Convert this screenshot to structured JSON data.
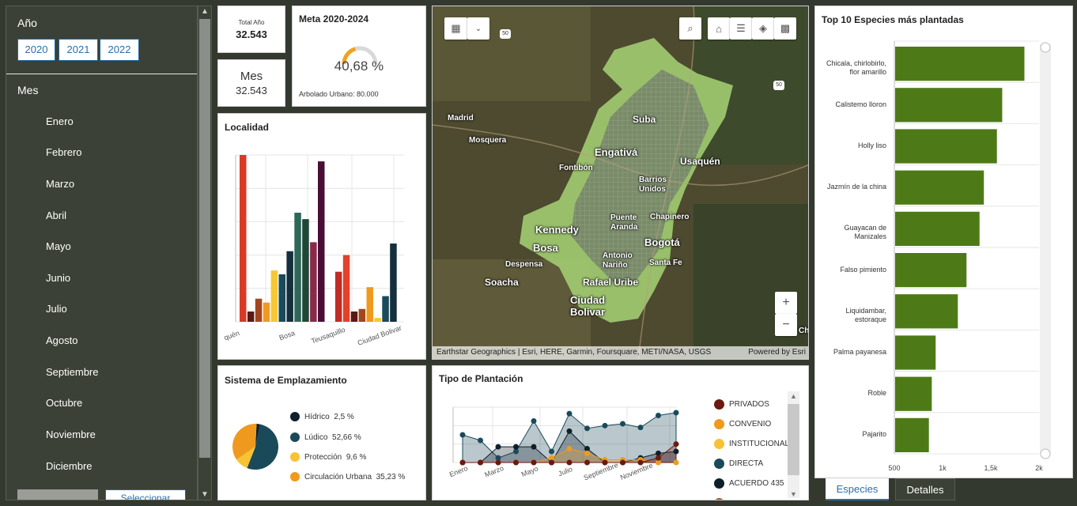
{
  "filters": {
    "year_title": "Año",
    "years": [
      "2020",
      "2021",
      "2022"
    ],
    "month_title": "Mes",
    "months": [
      "Enero",
      "Febrero",
      "Marzo",
      "Abril",
      "Mayo",
      "Junio",
      "Julio",
      "Agosto",
      "Septiembre",
      "Octubre",
      "Noviembre",
      "Diciembre"
    ],
    "select_label": "Seleccionar"
  },
  "kpi": {
    "total_label": "Total Año",
    "total_value": "32.543",
    "month_label": "Mes",
    "month_value": "32.543"
  },
  "meta": {
    "title": "Meta 2020-2024",
    "percent_text": "40,68 %",
    "percent": 40.68,
    "footer": "Arbolado Urbano: 80.000"
  },
  "localidad": {
    "title": "Localidad",
    "chart_data": {
      "type": "bar",
      "categories_visible": [
        "quén",
        "Bosa",
        "Teusaquillo",
        "Ciudad Bolivar"
      ],
      "values": [
        130,
        8,
        18,
        15,
        40,
        37,
        55,
        85,
        80,
        62,
        125,
        39,
        52,
        8,
        10,
        27,
        3,
        20,
        61
      ],
      "colors": [
        "#d93a25",
        "#5a1a12",
        "#a5451d",
        "#ef9a1e",
        "#f7c833",
        "#1b4a5a",
        "#14303f",
        "#2d6757",
        "#1f4736",
        "#8a2a4a",
        "#4a0e36",
        "#c02b24",
        "#e2412b",
        "#5a1a12",
        "#a5451d",
        "#ef9a1e",
        "#f7c833",
        "#1b4a5a",
        "#14303f"
      ],
      "ylim": [
        0,
        130
      ],
      "grid": true
    }
  },
  "map": {
    "places": [
      "Suba",
      "Madrid",
      "Mosquera",
      "Engativá",
      "Usaquén",
      "Fontibón",
      "Barrios Unidos",
      "Puente Aranda",
      "Chapinero",
      "Kennedy",
      "Bosa",
      "Bogotá",
      "Antonio Nariño",
      "Santa Fe",
      "Despensa",
      "Soacha",
      "Rafael Uribe",
      "Ciudad Bolivar",
      "Ch"
    ],
    "attribution": "Earthstar Geographics | Esri, HERE, Garmin, Foursquare, METI/NASA, USGS",
    "powered_by": "Powered by Esri",
    "road_shield_1": "50",
    "road_shield_2": "50",
    "icons": [
      "basemap-icon",
      "chevron-down-icon",
      "search-icon",
      "home-icon",
      "list-icon",
      "layers-icon",
      "qr-icon",
      "zoom-in-icon",
      "zoom-out-icon"
    ],
    "zoom_in": "+",
    "zoom_out": "−"
  },
  "emplazamiento": {
    "title": "Sistema de Emplazamiento",
    "chart_data": {
      "type": "pie",
      "slices": [
        {
          "label": "Hídrico",
          "value": 2.5,
          "text": "2,5 %",
          "color": "#0e1f2c"
        },
        {
          "label": "Lúdico",
          "value": 52.66,
          "text": "52,66 %",
          "color": "#1a4a5a"
        },
        {
          "label": "Protección",
          "value": 9.6,
          "text": "9,6 %",
          "color": "#f7c233"
        },
        {
          "label": "Circulación Urbana",
          "value": 35.23,
          "text": "35,23 %",
          "color": "#ef9a1e"
        }
      ]
    }
  },
  "plantacion": {
    "title": "Tipo de Plantación",
    "chart_data": {
      "type": "area",
      "x_labels_visible": [
        "Enero",
        "Marzo",
        "Mayo",
        "Julio",
        "Septiembre",
        "Noviembre"
      ],
      "series": [
        {
          "name": "DIRECTA",
          "color": "#1a4a5a",
          "values": [
            30,
            24,
            5,
            12,
            45,
            12,
            53,
            37,
            40,
            42,
            38,
            51,
            54
          ]
        },
        {
          "name": "ACUERDO 435",
          "color": "#0e1f2c",
          "values": [
            0,
            0,
            17,
            17,
            17,
            0,
            34,
            15,
            0,
            0,
            5,
            10,
            12
          ]
        },
        {
          "name": "CONVENIO",
          "color": "#ef9a1e",
          "values": [
            0,
            0,
            0,
            0,
            0,
            5,
            15,
            10,
            3,
            3,
            3,
            0,
            0
          ]
        },
        {
          "name": "PRIVADOS",
          "color": "#6a1a10",
          "values": [
            0,
            0,
            0,
            0,
            0,
            0,
            0,
            0,
            0,
            0,
            0,
            5,
            20
          ]
        }
      ],
      "legend": [
        "PRIVADOS",
        "CONVENIO",
        "INSTITUCIONAL",
        "DIRECTA",
        "ACUERDO 435"
      ],
      "legend_colors": [
        "#6a1a10",
        "#ef9a1e",
        "#f7c233",
        "#1a4a5a",
        "#0e1f2c"
      ]
    }
  },
  "especies": {
    "title": "Top 10 Especies más plantadas",
    "chart_data": {
      "type": "bar",
      "orientation": "horizontal",
      "categories": [
        "Chicala, chirlobirlo, flor amarillo",
        "Calistemo lloron",
        "Holly liso",
        "Jazmín de la china",
        "Guayacan de Manizales",
        "Falso pimiento",
        "Liquidambar, estoraque",
        "Palma payanesa",
        "Roble",
        "Pajarito"
      ],
      "values": [
        1840,
        1610,
        1555,
        1420,
        1375,
        1240,
        1150,
        920,
        880,
        850
      ],
      "xlim": [
        500,
        2000
      ],
      "ticks": [
        "500",
        "1k",
        "1,5k",
        "2k"
      ],
      "color": "#4d7a16"
    }
  },
  "tabs": [
    "Especies",
    "Detalles"
  ],
  "colors": {
    "background": "#34392f",
    "accent": "#2a6fab",
    "bar_green": "#4d7a16"
  }
}
